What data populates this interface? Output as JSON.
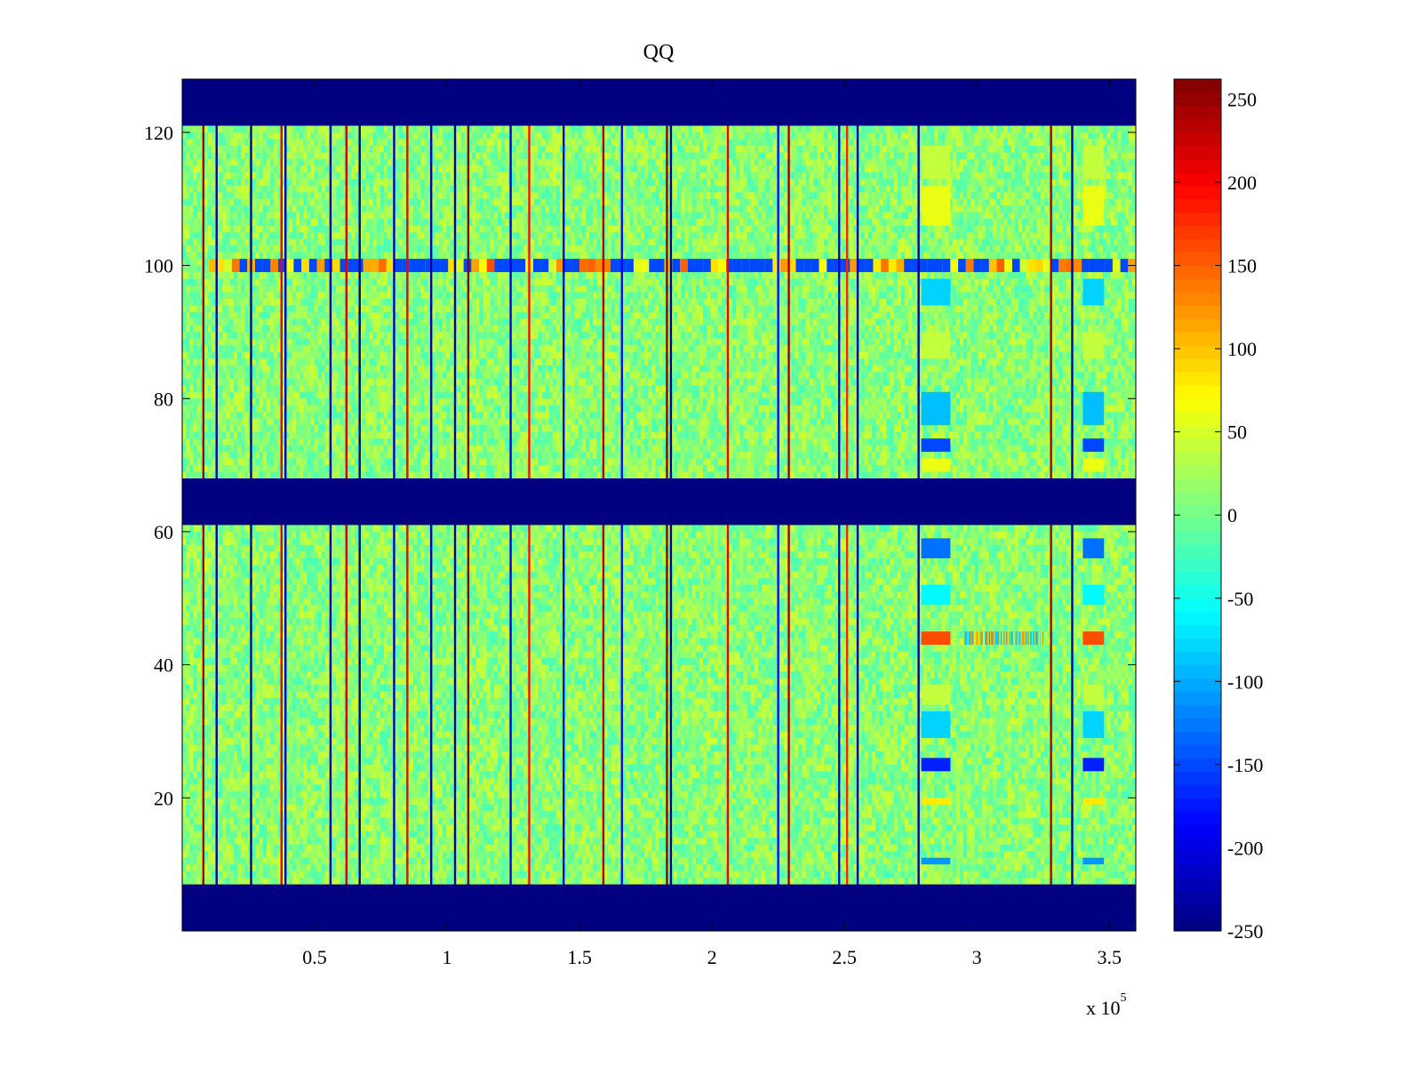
{
  "chart_data": {
    "type": "heatmap",
    "title": "QQ",
    "xlabel": "",
    "ylabel": "",
    "x_multiplier_label": "x 10",
    "x_multiplier_exponent": "5",
    "xlim": [
      0,
      360000
    ],
    "ylim": [
      0,
      128
    ],
    "x_ticks": [
      {
        "value": 50000,
        "label": "0.5"
      },
      {
        "value": 100000,
        "label": "1"
      },
      {
        "value": 150000,
        "label": "1.5"
      },
      {
        "value": 200000,
        "label": "2"
      },
      {
        "value": 250000,
        "label": "2.5"
      },
      {
        "value": 300000,
        "label": "3"
      },
      {
        "value": 350000,
        "label": "3.5"
      }
    ],
    "y_ticks": [
      {
        "value": 20,
        "label": "20"
      },
      {
        "value": 40,
        "label": "40"
      },
      {
        "value": 60,
        "label": "60"
      },
      {
        "value": 80,
        "label": "80"
      },
      {
        "value": 100,
        "label": "100"
      },
      {
        "value": 120,
        "label": "120"
      }
    ],
    "colormap": "jet",
    "clim": [
      -250,
      262
    ],
    "colorbar_ticks": [
      {
        "value": 250,
        "label": "250"
      },
      {
        "value": 200,
        "label": "200"
      },
      {
        "value": 150,
        "label": "150"
      },
      {
        "value": 100,
        "label": "100"
      },
      {
        "value": 50,
        "label": "50"
      },
      {
        "value": 0,
        "label": "0"
      },
      {
        "value": -50,
        "label": "-50"
      },
      {
        "value": -100,
        "label": "-100"
      },
      {
        "value": -150,
        "label": "-150"
      },
      {
        "value": -200,
        "label": "-200"
      },
      {
        "value": -250,
        "label": "-250"
      }
    ],
    "background_value": 12,
    "masked_value": -250,
    "masked_row_bands": [
      [
        0,
        7
      ],
      [
        61,
        68
      ],
      [
        121,
        128
      ]
    ],
    "vertical_lines": [
      {
        "x": 8000,
        "value": 240
      },
      {
        "x": 13000,
        "value": -230
      },
      {
        "x": 26000,
        "value": -230
      },
      {
        "x": 37500,
        "value": 200
      },
      {
        "x": 39000,
        "value": -220
      },
      {
        "x": 56000,
        "value": -230
      },
      {
        "x": 62000,
        "value": 215
      },
      {
        "x": 67000,
        "value": -240
      },
      {
        "x": 80000,
        "value": -220
      },
      {
        "x": 85000,
        "value": 200
      },
      {
        "x": 94000,
        "value": -230
      },
      {
        "x": 103000,
        "value": -230
      },
      {
        "x": 108000,
        "value": 250
      },
      {
        "x": 124000,
        "value": -200
      },
      {
        "x": 131000,
        "value": 190
      },
      {
        "x": 144000,
        "value": -200
      },
      {
        "x": 159000,
        "value": 230
      },
      {
        "x": 166000,
        "value": -180
      },
      {
        "x": 183000,
        "value": 255
      },
      {
        "x": 184500,
        "value": -240
      },
      {
        "x": 206000,
        "value": 200
      },
      {
        "x": 225000,
        "value": -180
      },
      {
        "x": 229000,
        "value": 245
      },
      {
        "x": 248000,
        "value": -200
      },
      {
        "x": 251000,
        "value": 180
      },
      {
        "x": 255000,
        "value": -220
      },
      {
        "x": 278000,
        "value": -240
      },
      {
        "x": 328000,
        "value": 240
      },
      {
        "x": 336000,
        "value": -230
      }
    ],
    "horizontal_streaks": [
      {
        "y": 100,
        "x_range": [
          10000,
          360000
        ],
        "value": -150
      },
      {
        "y": 44,
        "x_range": [
          295000,
          325000
        ],
        "value": -80
      }
    ],
    "hot_regions": [
      {
        "x_range": [
          279000,
          290000
        ],
        "rows": [
          [
            113,
            118,
            40
          ],
          [
            106,
            112,
            60
          ],
          [
            94,
            98,
            -80
          ],
          [
            86,
            90,
            40
          ],
          [
            76,
            81,
            -90
          ],
          [
            72,
            74,
            -150
          ],
          [
            69,
            71,
            60
          ],
          [
            56,
            59,
            -130
          ],
          [
            49,
            52,
            -60
          ],
          [
            43,
            45,
            160
          ],
          [
            34,
            37,
            40
          ],
          [
            29,
            33,
            -80
          ],
          [
            24,
            26,
            -170
          ],
          [
            19,
            20,
            80
          ],
          [
            10,
            11,
            -110
          ]
        ]
      },
      {
        "x_range": [
          340000,
          348000
        ],
        "rows": [
          [
            113,
            118,
            40
          ],
          [
            106,
            112,
            60
          ],
          [
            94,
            98,
            -80
          ],
          [
            86,
            90,
            40
          ],
          [
            76,
            81,
            -90
          ],
          [
            72,
            74,
            -150
          ],
          [
            69,
            71,
            60
          ],
          [
            56,
            59,
            -130
          ],
          [
            49,
            52,
            -60
          ],
          [
            43,
            45,
            160
          ],
          [
            34,
            37,
            40
          ],
          [
            29,
            33,
            -80
          ],
          [
            24,
            26,
            -170
          ],
          [
            19,
            20,
            80
          ],
          [
            10,
            11,
            -110
          ]
        ]
      }
    ]
  }
}
